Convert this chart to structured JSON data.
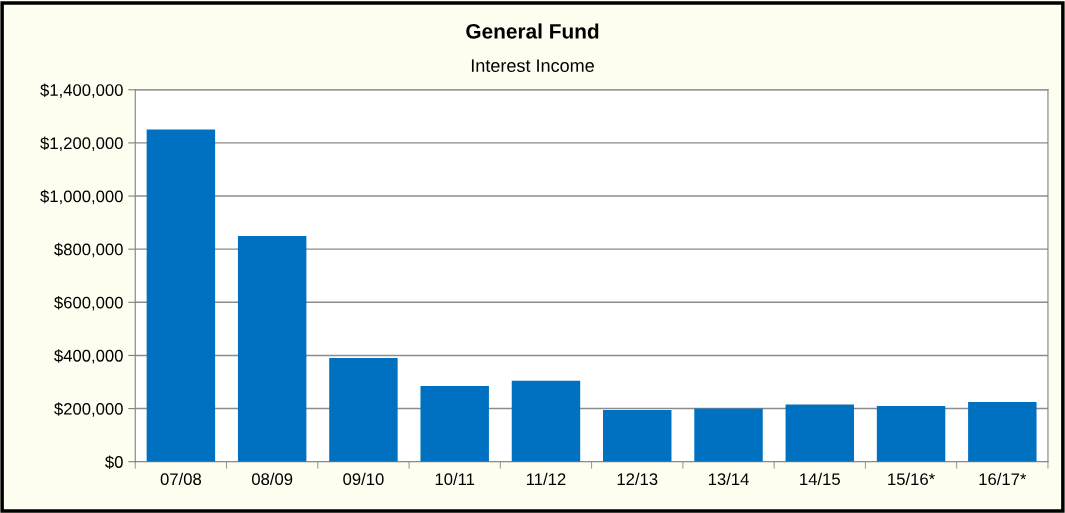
{
  "chart_data": {
    "type": "bar",
    "title": "General Fund",
    "subtitle": "Interest Income",
    "categories": [
      "07/08",
      "08/09",
      "09/10",
      "10/11",
      "11/12",
      "12/13",
      "13/14",
      "14/15",
      "15/16*",
      "16/17*"
    ],
    "values": [
      1250000,
      850000,
      390000,
      285000,
      305000,
      195000,
      200000,
      215000,
      210000,
      225000
    ],
    "color": "#0070c0",
    "ylim": [
      0,
      1400000
    ],
    "yticks": [
      {
        "value": 0,
        "label": "$0"
      },
      {
        "value": 200000,
        "label": "$200,000"
      },
      {
        "value": 400000,
        "label": "$400,000"
      },
      {
        "value": 600000,
        "label": "$600,000"
      },
      {
        "value": 800000,
        "label": "$800,000"
      },
      {
        "value": 1000000,
        "label": "$1,000,000"
      },
      {
        "value": 1200000,
        "label": "$1,200,000"
      },
      {
        "value": 1400000,
        "label": "$1,400,000"
      }
    ],
    "grid": "y"
  }
}
